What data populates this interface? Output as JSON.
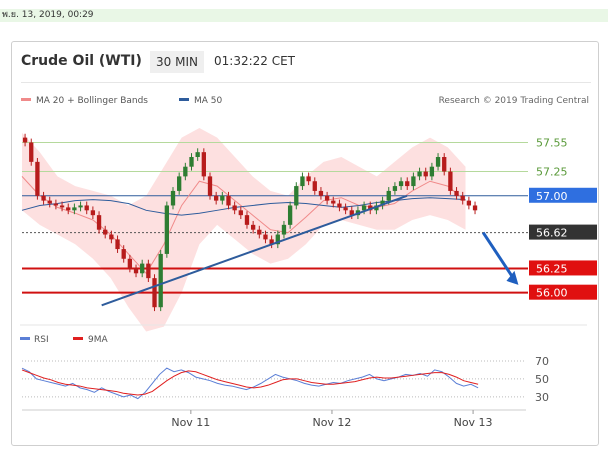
{
  "topbar": {
    "datetime": "พ.ย. 13, 2019, 00:29"
  },
  "header": {
    "title": "Crude Oil (WTI)",
    "timeframe": "30 MIN",
    "time": "01:32:22 CET"
  },
  "legend": {
    "ma20_label": "MA 20 + Bollinger Bands",
    "ma20_color": "#f08a8a",
    "ma50_label": "MA 50",
    "ma50_color": "#2e5c9c",
    "research": "Research © 2019 Trading Central"
  },
  "rsi_legend": {
    "rsi_label": "RSI",
    "rsi_color": "#5b7fd6",
    "ma_label": "9MA",
    "ma_color": "#e02020"
  },
  "chart_data": [
    {
      "type": "candlestick",
      "x_labels": [
        "Nov 11",
        "Nov 12",
        "Nov 13"
      ],
      "ylim": [
        55.78,
        57.72
      ],
      "levels": [
        {
          "value": 57.55,
          "label": "57.55",
          "color": "#b5d99c",
          "text_color": "#5a9a3a",
          "style": "line"
        },
        {
          "value": 57.25,
          "label": "57.25",
          "color": "#b5d99c",
          "text_color": "#5a9a3a",
          "style": "line"
        },
        {
          "value": 57.0,
          "label": "57.00",
          "color": "#2e5c9c",
          "text_color": "#ffffff",
          "style": "badge",
          "badge": "#2f6fe0"
        },
        {
          "value": 56.62,
          "label": "56.62",
          "color": "#555555",
          "text_color": "#ffffff",
          "style": "badge",
          "badge": "#333333"
        },
        {
          "value": 56.25,
          "label": "56.25",
          "color": "#d01010",
          "text_color": "#ffffff",
          "style": "badge",
          "badge": "#e01010"
        },
        {
          "value": 56.0,
          "label": "56.00",
          "color": "#d01010",
          "text_color": "#ffffff",
          "style": "badge",
          "badge": "#e01010"
        }
      ],
      "close_series": [
        57.55,
        57.35,
        57.0,
        56.95,
        56.92,
        56.9,
        56.88,
        56.85,
        56.88,
        56.9,
        56.85,
        56.8,
        56.65,
        56.6,
        56.55,
        56.45,
        56.35,
        56.25,
        56.2,
        56.3,
        56.15,
        55.85,
        56.4,
        56.9,
        57.05,
        57.2,
        57.3,
        57.4,
        57.45,
        57.2,
        57.0,
        56.95,
        57.0,
        56.9,
        56.85,
        56.8,
        56.7,
        56.65,
        56.6,
        56.55,
        56.5,
        56.6,
        56.7,
        56.9,
        57.1,
        57.2,
        57.15,
        57.05,
        57.0,
        56.95,
        56.92,
        56.88,
        56.85,
        56.8,
        56.85,
        56.9,
        56.85,
        56.9,
        56.95,
        57.05,
        57.1,
        57.15,
        57.1,
        57.2,
        57.25,
        57.2,
        57.3,
        57.4,
        57.25,
        57.05,
        57.0,
        56.95,
        56.9,
        56.85
      ],
      "trendline": {
        "from": [
          0.17,
          55.87
        ],
        "to": [
          0.8,
          57.0
        ]
      },
      "projection_arrow": {
        "from": 56.62,
        "to": 56.08
      },
      "ma50": [
        56.85,
        56.9,
        56.92,
        56.95,
        56.96,
        56.95,
        56.92,
        56.85,
        56.82,
        56.8,
        56.82,
        56.85,
        56.88,
        56.9,
        56.92,
        56.93,
        56.92,
        56.9,
        56.88,
        56.9,
        56.93,
        56.95,
        56.97,
        56.98,
        56.97,
        56.96
      ],
      "ma20": [
        57.2,
        57.0,
        56.88,
        56.82,
        56.75,
        56.6,
        56.4,
        56.2,
        56.5,
        56.9,
        57.15,
        57.1,
        56.95,
        56.8,
        56.65,
        56.62,
        56.78,
        56.95,
        56.98,
        56.9,
        56.88,
        56.92,
        57.05,
        57.15,
        57.1,
        56.95
      ],
      "bb_upper": [
        57.65,
        57.45,
        57.2,
        57.1,
        57.05,
        57.0,
        56.9,
        57.0,
        57.3,
        57.6,
        57.7,
        57.6,
        57.4,
        57.2,
        57.05,
        57.0,
        57.2,
        57.35,
        57.4,
        57.3,
        57.2,
        57.35,
        57.5,
        57.6,
        57.5,
        57.3
      ],
      "bb_lower": [
        56.85,
        56.7,
        56.6,
        56.5,
        56.35,
        56.15,
        55.85,
        55.6,
        55.65,
        56.0,
        56.5,
        56.7,
        56.55,
        56.4,
        56.3,
        56.35,
        56.5,
        56.7,
        56.75,
        56.7,
        56.65,
        56.65,
        56.75,
        56.8,
        56.75,
        56.65
      ]
    },
    {
      "type": "line",
      "ylim": [
        22,
        80
      ],
      "y_ticks": [
        70,
        50,
        30
      ],
      "rsi": [
        62,
        58,
        50,
        48,
        46,
        44,
        42,
        45,
        40,
        38,
        35,
        40,
        36,
        33,
        30,
        32,
        28,
        35,
        45,
        55,
        62,
        58,
        60,
        57,
        52,
        50,
        48,
        45,
        43,
        42,
        40,
        38,
        41,
        45,
        50,
        55,
        52,
        50,
        48,
        45,
        43,
        42,
        44,
        46,
        45,
        48,
        50,
        52,
        55,
        50,
        48,
        50,
        52,
        55,
        54,
        56,
        53,
        60,
        58,
        52,
        45,
        42,
        44,
        40
      ],
      "ma9": [
        60,
        57,
        54,
        51,
        49,
        46,
        44,
        43,
        42,
        40,
        39,
        38,
        37,
        36,
        34,
        33,
        32,
        33,
        36,
        42,
        48,
        53,
        57,
        59,
        58,
        55,
        52,
        49,
        47,
        45,
        43,
        41,
        40,
        41,
        43,
        46,
        49,
        50,
        50,
        48,
        46,
        45,
        44,
        44,
        45,
        46,
        47,
        49,
        51,
        52,
        51,
        51,
        52,
        53,
        54,
        55,
        56,
        57,
        57,
        55,
        52,
        48,
        46,
        44
      ]
    }
  ]
}
